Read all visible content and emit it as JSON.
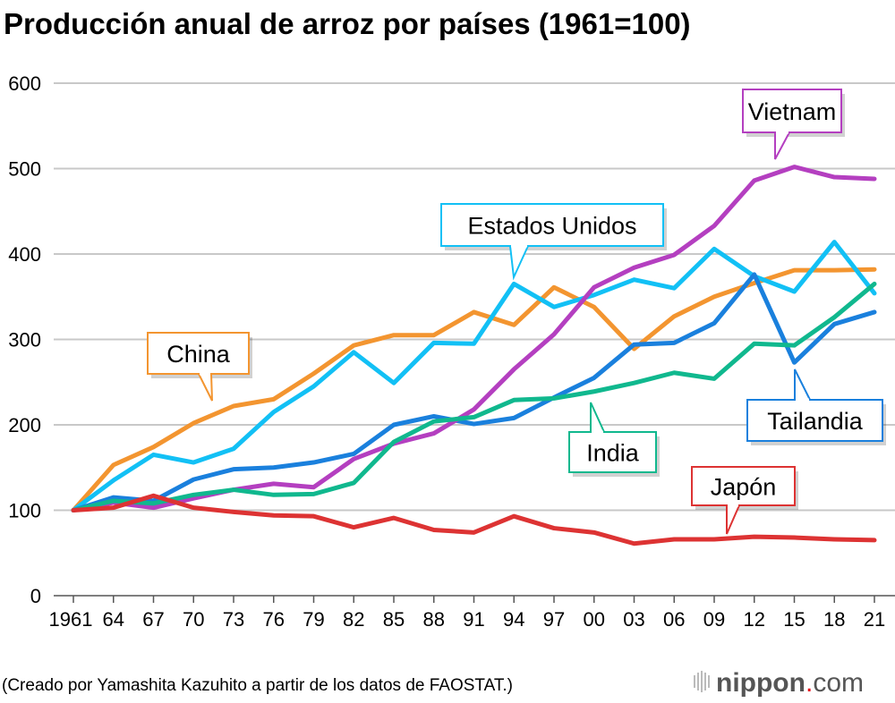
{
  "chart_data": {
    "type": "line",
    "title": "Producción anual de arroz por países (1961=100)",
    "source": "(Creado por Yamashita Kazuhito a partir de los datos de FAOSTAT.)",
    "logo": "nippon.com",
    "x_tick_labels": [
      "1961",
      "64",
      "67",
      "70",
      "73",
      "76",
      "79",
      "82",
      "85",
      "88",
      "91",
      "94",
      "97",
      "00",
      "03",
      "06",
      "09",
      "12",
      "15",
      "18",
      "21"
    ],
    "x": [
      1961,
      1964,
      1967,
      1970,
      1973,
      1976,
      1979,
      1982,
      1985,
      1988,
      1991,
      1994,
      1997,
      2000,
      2003,
      2006,
      2009,
      2012,
      2015,
      2018,
      2021
    ],
    "ylim": [
      0,
      600
    ],
    "y_ticks": [
      0,
      100,
      200,
      300,
      400,
      500,
      600
    ],
    "grid": true,
    "series": [
      {
        "name": "China",
        "color": "#f39530",
        "values": [
          100,
          153,
          174,
          202,
          222,
          230,
          260,
          293,
          305,
          305,
          332,
          317,
          361,
          338,
          289,
          327,
          350,
          366,
          381,
          381,
          382
        ]
      },
      {
        "name": "Estados Unidos",
        "color": "#12c0f5",
        "values": [
          100,
          135,
          165,
          156,
          172,
          215,
          245,
          285,
          249,
          296,
          295,
          365,
          338,
          352,
          370,
          360,
          406,
          374,
          356,
          414,
          354
        ]
      },
      {
        "name": "Tailandia",
        "color": "#1a80dd",
        "values": [
          100,
          115,
          111,
          136,
          148,
          150,
          156,
          166,
          200,
          210,
          201,
          208,
          232,
          255,
          294,
          296,
          319,
          376,
          273,
          318,
          332
        ]
      },
      {
        "name": "Vietnam",
        "color": "#b43fc0",
        "values": [
          100,
          109,
          103,
          114,
          124,
          131,
          127,
          160,
          178,
          190,
          218,
          265,
          306,
          361,
          384,
          399,
          433,
          486,
          502,
          490,
          488
        ]
      },
      {
        "name": "India",
        "color": "#10b88e",
        "values": [
          100,
          111,
          108,
          118,
          124,
          118,
          119,
          132,
          180,
          204,
          209,
          229,
          231,
          239,
          249,
          261,
          254,
          295,
          293,
          326,
          365
        ]
      },
      {
        "name": "Japón",
        "color": "#dd3333",
        "values": [
          100,
          103,
          117,
          103,
          98,
          94,
          93,
          80,
          91,
          77,
          74,
          93,
          79,
          74,
          61,
          66,
          66,
          69,
          68,
          66,
          65
        ]
      }
    ]
  }
}
